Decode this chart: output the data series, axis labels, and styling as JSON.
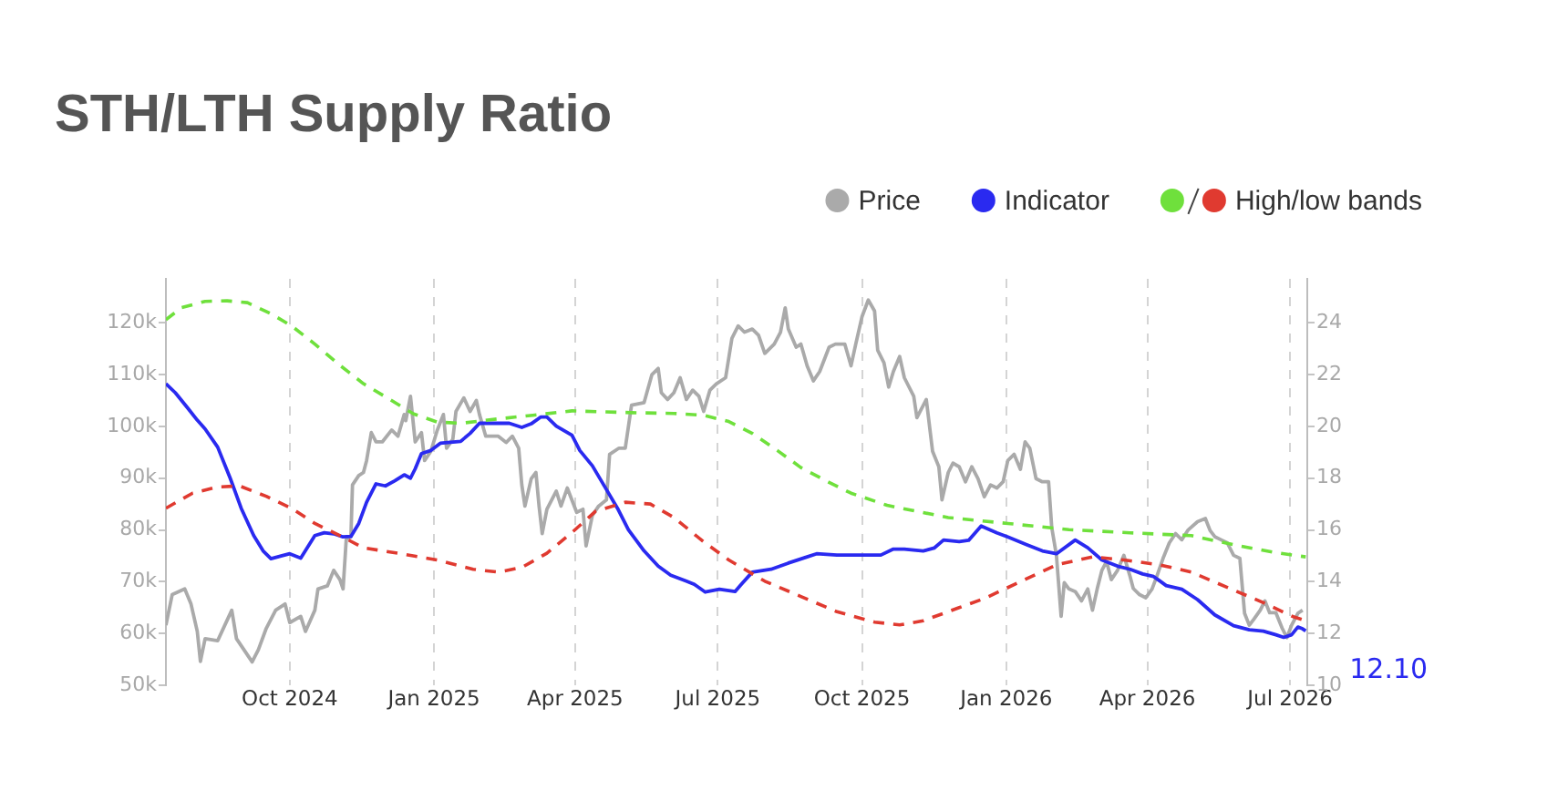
{
  "chart_data": {
    "type": "line",
    "title": "STH/LTH Supply Ratio",
    "legend": "top right",
    "grid": "x",
    "marker": "none",
    "xlim": [
      "2024-07-14",
      "2026-07-12"
    ],
    "xticks": [
      {
        "value": "2024-10-01",
        "label": "Oct 2024"
      },
      {
        "value": "2025-01-01",
        "label": "Jan 2025"
      },
      {
        "value": "2025-04-01",
        "label": "Apr 2025"
      },
      {
        "value": "2025-07-01",
        "label": "Jul 2025"
      },
      {
        "value": "2025-10-01",
        "label": "Oct 2025"
      },
      {
        "value": "2026-01-01",
        "label": "Jan 2026"
      },
      {
        "value": "2026-04-01",
        "label": "Apr 2026"
      },
      {
        "value": "2026-07-01",
        "label": "Jul 2026"
      }
    ],
    "ylim": [
      50000,
      128500
    ],
    "yticks": [
      {
        "value": 50000,
        "label": "50k"
      },
      {
        "value": 60000,
        "label": "60k"
      },
      {
        "value": 70000,
        "label": "70k"
      },
      {
        "value": 80000,
        "label": "80k"
      },
      {
        "value": 90000,
        "label": "90k"
      },
      {
        "value": 100000,
        "label": "100k"
      },
      {
        "value": 110000,
        "label": "110k"
      },
      {
        "value": 120000,
        "label": "120k"
      }
    ],
    "y2lim": [
      10,
      25.7
    ],
    "y2ticks": [
      10,
      12,
      14,
      16,
      18,
      20,
      22,
      24
    ],
    "series": [
      {
        "name": "Price",
        "color": "#aaaaaa",
        "line_style": "solid",
        "x": [
          "2024-07-14",
          "2024-07-18",
          "2024-07-26",
          "2024-07-30",
          "2024-08-03",
          "2024-08-05",
          "2024-08-08",
          "2024-08-16",
          "2024-08-25",
          "2024-08-28",
          "2024-09-07",
          "2024-09-11",
          "2024-09-16",
          "2024-09-22",
          "2024-09-28",
          "2024-10-01",
          "2024-10-08",
          "2024-10-11",
          "2024-10-17",
          "2024-10-19",
          "2024-10-25",
          "2024-10-29",
          "2024-11-02",
          "2024-11-04",
          "2024-11-06",
          "2024-11-09",
          "2024-11-10",
          "2024-11-14",
          "2024-11-17",
          "2024-11-19",
          "2024-11-22",
          "2024-11-25",
          "2024-11-29",
          "2024-12-05",
          "2024-12-09",
          "2024-12-13",
          "2024-12-14",
          "2024-12-17",
          "2024-12-20",
          "2024-12-24",
          "2024-12-26",
          "2024-12-30",
          "2025-01-03",
          "2025-01-07",
          "2025-01-09",
          "2025-01-13",
          "2025-01-15",
          "2025-01-20",
          "2025-01-24",
          "2025-01-28",
          "2025-01-30",
          "2025-02-03",
          "2025-02-11",
          "2025-02-16",
          "2025-02-20",
          "2025-02-24",
          "2025-02-26",
          "2025-02-28",
          "2025-03-04",
          "2025-03-07",
          "2025-03-09",
          "2025-03-11",
          "2025-03-14",
          "2025-03-20",
          "2025-03-23",
          "2025-03-27",
          "2025-04-02",
          "2025-04-06",
          "2025-04-08",
          "2025-04-12",
          "2025-04-16",
          "2025-04-21",
          "2025-04-23",
          "2025-04-29",
          "2025-05-03",
          "2025-05-07",
          "2025-05-15",
          "2025-05-20",
          "2025-05-24",
          "2025-05-26",
          "2025-05-30",
          "2025-06-03",
          "2025-06-07",
          "2025-06-11",
          "2025-06-15",
          "2025-06-19",
          "2025-06-22",
          "2025-06-26",
          "2025-06-30",
          "2025-07-06",
          "2025-07-10",
          "2025-07-14",
          "2025-07-18",
          "2025-07-23",
          "2025-07-27",
          "2025-07-31",
          "2025-08-06",
          "2025-08-10",
          "2025-08-13",
          "2025-08-15",
          "2025-08-20",
          "2025-08-23",
          "2025-08-27",
          "2025-08-31",
          "2025-09-04",
          "2025-09-10",
          "2025-09-14",
          "2025-09-20",
          "2025-09-24",
          "2025-09-27",
          "2025-10-01",
          "2025-10-05",
          "2025-10-09",
          "2025-10-11",
          "2025-10-15",
          "2025-10-18",
          "2025-10-21",
          "2025-10-25",
          "2025-10-28",
          "2025-11-03",
          "2025-11-05",
          "2025-11-11",
          "2025-11-15",
          "2025-11-19",
          "2025-11-21",
          "2025-11-25",
          "2025-11-28",
          "2025-12-02",
          "2025-12-06",
          "2025-12-10",
          "2025-12-14",
          "2025-12-18",
          "2025-12-22",
          "2025-12-26",
          "2025-12-30",
          "2026-01-02",
          "2026-01-06",
          "2026-01-10",
          "2026-01-13",
          "2026-01-16",
          "2026-01-20",
          "2026-01-24",
          "2026-01-28",
          "2026-01-30",
          "2026-02-02",
          "2026-02-05",
          "2026-02-07",
          "2026-02-10",
          "2026-02-14",
          "2026-02-18",
          "2026-02-22",
          "2026-02-25",
          "2026-02-28",
          "2026-03-03",
          "2026-03-06",
          "2026-03-09",
          "2026-03-13",
          "2026-03-17",
          "2026-03-21",
          "2026-03-23",
          "2026-03-27",
          "2026-03-31",
          "2026-04-04",
          "2026-04-07",
          "2026-04-11",
          "2026-04-15",
          "2026-04-19",
          "2026-04-23",
          "2026-04-27",
          "2026-05-03",
          "2026-05-08",
          "2026-05-11",
          "2026-05-14",
          "2026-05-18",
          "2026-05-22",
          "2026-05-26",
          "2026-05-30",
          "2026-06-02",
          "2026-06-05",
          "2026-06-08",
          "2026-06-12",
          "2026-06-15",
          "2026-06-18",
          "2026-06-22",
          "2026-06-26",
          "2026-06-29",
          "2026-07-02",
          "2026-07-06",
          "2026-07-09"
        ],
        "values": [
          61600,
          67500,
          68600,
          65700,
          60400,
          54600,
          59000,
          58600,
          64500,
          59000,
          54500,
          56900,
          61000,
          64500,
          65700,
          62100,
          63300,
          60400,
          64500,
          68600,
          69200,
          72200,
          70400,
          68600,
          78100,
          78700,
          88700,
          90500,
          91100,
          93400,
          98800,
          97000,
          97000,
          99300,
          98100,
          102300,
          101100,
          105800,
          97000,
          98800,
          93400,
          95200,
          99200,
          102300,
          95800,
          97500,
          102900,
          105500,
          102900,
          105000,
          102300,
          98100,
          98100,
          96900,
          98100,
          95800,
          88700,
          84600,
          89900,
          91100,
          84600,
          79300,
          84000,
          87500,
          84600,
          88100,
          83400,
          84000,
          76900,
          82800,
          84600,
          85800,
          94600,
          95800,
          95800,
          104100,
          104600,
          110000,
          111200,
          106500,
          105200,
          106500,
          109400,
          105200,
          107000,
          105800,
          102900,
          107000,
          108200,
          109400,
          117000,
          119400,
          118200,
          118800,
          117600,
          114100,
          115900,
          118200,
          122900,
          118800,
          115300,
          115900,
          111700,
          108800,
          110600,
          115300,
          115900,
          115900,
          111700,
          115900,
          121200,
          124400,
          122300,
          114700,
          112300,
          107600,
          110600,
          113500,
          109400,
          105800,
          101700,
          105200,
          95200,
          92200,
          85800,
          91100,
          92900,
          92200,
          89300,
          92200,
          89900,
          86400,
          88700,
          88100,
          89300,
          93400,
          94600,
          91700,
          97000,
          95800,
          89900,
          89300,
          89300,
          80500,
          75100,
          63300,
          69800,
          68600,
          68100,
          66300,
          68600,
          64500,
          68600,
          72200,
          73900,
          70400,
          72200,
          75100,
          71000,
          68700,
          67500,
          66900,
          68600,
          71000,
          74500,
          77500,
          79300,
          78100,
          80000,
          81600,
          82200,
          79900,
          78700,
          78100,
          77500,
          75100,
          74500,
          63900,
          61600,
          62800,
          64500,
          66300,
          64000,
          64000,
          61000,
          59200,
          61600,
          63900,
          64500
        ]
      },
      {
        "name": "Indicator",
        "color": "#2a2af0",
        "axis": "y2",
        "line_style": "solid",
        "x": [
          "2024-07-14",
          "2024-07-20",
          "2024-07-28",
          "2024-08-03",
          "2024-08-08",
          "2024-08-16",
          "2024-08-24",
          "2024-08-31",
          "2024-09-08",
          "2024-09-14",
          "2024-09-19",
          "2024-09-26",
          "2024-10-01",
          "2024-10-08",
          "2024-10-11",
          "2024-10-17",
          "2024-10-23",
          "2024-10-29",
          "2024-11-04",
          "2024-11-09",
          "2024-11-14",
          "2024-11-19",
          "2024-11-25",
          "2024-12-01",
          "2024-12-07",
          "2024-12-13",
          "2024-12-17",
          "2024-12-20",
          "2024-12-24",
          "2024-12-30",
          "2025-01-05",
          "2025-01-18",
          "2025-01-24",
          "2025-01-30",
          "2025-02-11",
          "2025-02-18",
          "2025-02-26",
          "2025-03-04",
          "2025-03-10",
          "2025-03-14",
          "2025-03-20",
          "2025-03-30",
          "2025-04-04",
          "2025-04-12",
          "2025-04-20",
          "2025-04-28",
          "2025-05-05",
          "2025-05-15",
          "2025-05-24",
          "2025-06-01",
          "2025-06-11",
          "2025-06-16",
          "2025-06-23",
          "2025-07-02",
          "2025-07-12",
          "2025-07-16",
          "2025-07-23",
          "2025-08-04",
          "2025-08-15",
          "2025-08-27",
          "2025-09-02",
          "2025-09-15",
          "2025-10-01",
          "2025-10-13",
          "2025-10-21",
          "2025-10-28",
          "2025-11-09",
          "2025-11-16",
          "2025-11-22",
          "2025-12-02",
          "2025-12-08",
          "2025-12-16",
          "2025-12-26",
          "2026-01-02",
          "2026-01-14",
          "2026-01-24",
          "2026-02-02",
          "2026-02-14",
          "2026-02-22",
          "2026-03-03",
          "2026-03-13",
          "2026-03-21",
          "2026-03-29",
          "2026-04-05",
          "2026-04-13",
          "2026-04-23",
          "2026-05-03",
          "2026-05-14",
          "2026-05-26",
          "2026-06-05",
          "2026-06-14",
          "2026-06-22",
          "2026-06-27",
          "2026-07-02",
          "2026-07-06",
          "2026-07-09",
          "2026-07-11"
        ],
        "values": [
          21.65,
          21.3,
          20.7,
          20.24,
          19.9,
          19.2,
          18.0,
          16.84,
          15.78,
          15.19,
          14.89,
          15.0,
          15.08,
          14.91,
          15.2,
          15.78,
          15.89,
          15.85,
          15.73,
          15.75,
          16.25,
          17.07,
          17.78,
          17.7,
          17.9,
          18.13,
          18.0,
          18.36,
          18.95,
          19.07,
          19.35,
          19.42,
          19.73,
          20.12,
          20.12,
          20.12,
          19.96,
          20.1,
          20.36,
          20.36,
          20.01,
          19.66,
          19.07,
          18.48,
          17.66,
          16.84,
          16.01,
          15.19,
          14.6,
          14.25,
          14.02,
          13.9,
          13.6,
          13.71,
          13.62,
          13.9,
          14.37,
          14.48,
          14.72,
          14.96,
          15.08,
          15.03,
          15.03,
          15.03,
          15.26,
          15.26,
          15.19,
          15.3,
          15.61,
          15.55,
          15.6,
          16.15,
          15.89,
          15.73,
          15.43,
          15.19,
          15.08,
          15.61,
          15.31,
          14.84,
          14.6,
          14.48,
          14.3,
          14.2,
          13.85,
          13.71,
          13.31,
          12.72,
          12.3,
          12.14,
          12.09,
          11.95,
          11.85,
          11.95,
          12.25,
          12.18,
          12.1
        ],
        "value_labels": [
          null,
          null,
          null,
          null,
          null,
          null,
          null,
          null,
          null,
          null,
          null,
          null,
          null,
          null,
          null,
          null,
          null,
          null,
          null,
          null,
          null,
          null,
          null,
          null,
          null,
          null,
          null,
          null,
          null,
          null,
          null,
          null,
          null,
          null,
          null,
          null,
          null,
          null,
          null,
          null,
          null,
          null,
          null,
          null,
          null,
          null,
          null,
          null,
          null,
          null,
          null,
          null,
          null,
          null,
          null,
          null,
          null,
          null,
          null,
          null,
          null,
          null,
          null,
          null,
          null,
          null,
          null,
          null,
          null,
          null,
          null,
          null,
          null,
          null,
          null,
          null,
          null,
          null,
          null,
          null,
          null,
          null,
          null,
          null,
          null,
          null,
          null,
          null,
          null,
          null,
          null,
          null,
          null,
          null,
          null,
          null,
          "12.10"
        ]
      },
      {
        "color": "#6fe03c",
        "axis": "y2",
        "line_style": "dashed",
        "x": [
          "2024-07-14",
          "2024-07-24",
          "2024-08-08",
          "2024-08-22",
          "2024-09-04",
          "2024-09-19",
          "2024-10-02",
          "2024-10-17",
          "2024-11-02",
          "2024-11-17",
          "2024-12-03",
          "2024-12-19",
          "2025-01-03",
          "2025-01-18",
          "2025-02-11",
          "2025-03-05",
          "2025-03-30",
          "2025-05-07",
          "2025-06-03",
          "2025-06-22",
          "2025-07-08",
          "2025-07-23",
          "2025-08-08",
          "2025-08-23",
          "2025-09-08",
          "2025-09-24",
          "2025-10-17",
          "2025-11-09",
          "2025-11-25",
          "2026-01-02",
          "2026-02-10",
          "2026-03-21",
          "2026-04-29",
          "2026-05-30",
          "2026-06-22",
          "2026-07-11"
        ],
        "values": [
          24.12,
          24.59,
          24.83,
          24.85,
          24.78,
          24.35,
          23.89,
          23.18,
          22.36,
          21.65,
          21.07,
          20.48,
          20.17,
          20.12,
          20.29,
          20.43,
          20.6,
          20.53,
          20.5,
          20.43,
          20.19,
          19.73,
          19.07,
          18.41,
          17.9,
          17.42,
          16.95,
          16.67,
          16.48,
          16.25,
          16.01,
          15.89,
          15.78,
          15.38,
          15.12,
          14.96
        ]
      },
      {
        "name": "High/low bands",
        "color": "#e03a30",
        "axis": "y2",
        "line_style": "dashed",
        "x": [
          "2024-07-14",
          "2024-07-31",
          "2024-08-16",
          "2024-08-30",
          "2024-09-16",
          "2024-10-02",
          "2024-10-17",
          "2024-11-02",
          "2024-11-17",
          "2024-12-11",
          "2025-01-03",
          "2025-01-26",
          "2025-02-11",
          "2025-02-26",
          "2025-03-14",
          "2025-03-30",
          "2025-04-14",
          "2025-05-03",
          "2025-05-19",
          "2025-06-03",
          "2025-06-22",
          "2025-07-08",
          "2025-07-31",
          "2025-08-23",
          "2025-09-15",
          "2025-10-09",
          "2025-10-25",
          "2025-11-09",
          "2025-12-02",
          "2025-12-18",
          "2026-01-10",
          "2026-02-02",
          "2026-02-25",
          "2026-03-17",
          "2026-04-09",
          "2026-04-29",
          "2026-05-22",
          "2026-06-14",
          "2026-07-03",
          "2026-07-11"
        ],
        "values": [
          16.84,
          17.42,
          17.66,
          17.7,
          17.3,
          16.84,
          16.25,
          15.78,
          15.31,
          15.08,
          14.84,
          14.48,
          14.37,
          14.55,
          15.1,
          15.9,
          16.72,
          17.07,
          17.0,
          16.48,
          15.54,
          14.84,
          14.02,
          13.43,
          12.84,
          12.44,
          12.33,
          12.49,
          13.0,
          13.35,
          14.0,
          14.65,
          14.96,
          14.84,
          14.65,
          14.37,
          13.78,
          13.19,
          12.65,
          12.49
        ]
      }
    ]
  }
}
